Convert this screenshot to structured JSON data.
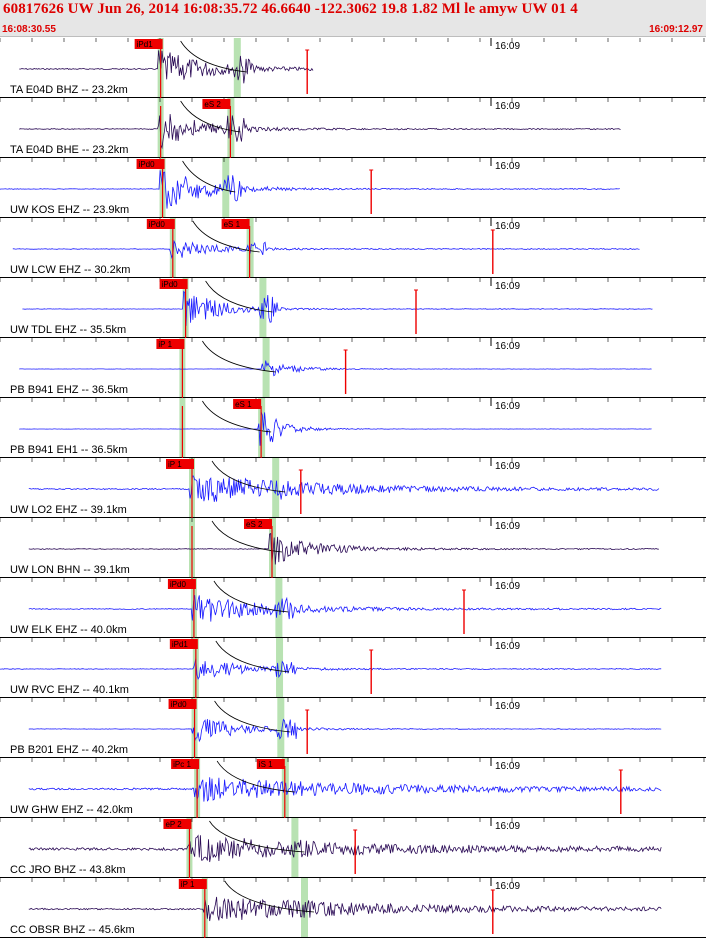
{
  "header": {
    "title": "60817626 UW Jun 26, 2014 16:08:35.72    46.6640 -122.3062 19.8 1.82 Ml le amyw UW 01    4",
    "time_start": "16:08:30.55",
    "time_end": "16:09:12.97"
  },
  "colors": {
    "trace_z": "#1a1aff",
    "trace_h": "#2a0a55",
    "pick_red": "#ee0000",
    "window_green": "#b8e2b2",
    "header_bg": "#e6e6e6"
  },
  "chart_data": {
    "type": "line",
    "minute_label": "16:09",
    "traces": [
      {
        "label": "TA E04D BHZ -- 23.2km",
        "color": "h",
        "p_label": "iPd1",
        "p": 25.1,
        "s": 37.0,
        "s_label": "",
        "onset": 24.5,
        "dur": 16,
        "amp": 0.8,
        "noise": 0.06,
        "end": 49.0,
        "gap": 3.0,
        "mark": 48.0
      },
      {
        "label": "TA E04D BHE -- 23.2km",
        "color": "h",
        "p_label": "",
        "p": 25.1,
        "s": 36.0,
        "s_label": "eS 2",
        "onset": 24.7,
        "dur": 15,
        "amp": 0.75,
        "noise": 0.04,
        "end": 97.0,
        "gap": 3.0,
        "mark": null
      },
      {
        "label": "UW KOS EHZ -- 23.9km",
        "color": "z",
        "p_label": "iPd0",
        "p": 25.4,
        "s": 35.2,
        "s_label": "",
        "onset": 25.0,
        "dur": 15,
        "amp": 0.85,
        "noise": 0.03,
        "end": 97.0,
        "gap": 0.0,
        "mark": 58.0
      },
      {
        "label": "UW LCW EHZ -- 30.2km",
        "color": "z",
        "p_label": "iPd0",
        "p": 27.0,
        "s": 39.0,
        "s_label": "eS 1",
        "onset": 26.6,
        "dur": 14,
        "amp": 0.45,
        "noise": 0.03,
        "end": 100.0,
        "gap": 2.0,
        "mark": 77.0
      },
      {
        "label": "UW TDL EHZ -- 35.5km",
        "color": "z",
        "p_label": "iPd0",
        "p": 29.0,
        "s": 41.0,
        "s_label": "",
        "onset": 28.6,
        "dur": 12,
        "amp": 0.8,
        "noise": 0.02,
        "end": 102.0,
        "gap": 3.5,
        "mark": 65.0
      },
      {
        "label": "PB B941 EHZ -- 36.5km",
        "color": "z",
        "p_label": "iP 1",
        "p": 28.5,
        "s": 41.5,
        "s_label": "",
        "onset": 40.8,
        "dur": 10,
        "amp": 0.4,
        "noise": 0.01,
        "end": 102.0,
        "gap": 3.0,
        "mark": 54.0
      },
      {
        "label": "PB B941 EH1 -- 36.5km",
        "color": "z",
        "p_label": "",
        "p": 28.5,
        "s": 40.8,
        "s_label": "eS 1",
        "onset": 40.4,
        "dur": 8,
        "amp": 0.75,
        "noise": 0.01,
        "end": 102.0,
        "gap": 3.0,
        "mark": null
      },
      {
        "label": "UW LO2 EHZ -- 39.1km",
        "color": "z",
        "p_label": "iP 1",
        "p": 30.0,
        "s": 43.0,
        "s_label": "",
        "onset": 29.6,
        "dur": 40,
        "amp": 0.6,
        "noise": 0.07,
        "end": 103.0,
        "gap": 4.5,
        "mark": 47.0
      },
      {
        "label": "UW LON BHN -- 39.1km",
        "color": "h",
        "p_label": "",
        "p": 30.0,
        "s": 42.5,
        "s_label": "eS 2",
        "onset": 42.1,
        "dur": 16,
        "amp": 0.6,
        "noise": 0.04,
        "end": 103.0,
        "gap": 4.5,
        "mark": null
      },
      {
        "label": "UW ELK EHZ -- 40.0km",
        "color": "z",
        "p_label": "iPd0",
        "p": 30.3,
        "s": 43.5,
        "s_label": "",
        "onset": 29.9,
        "dur": 25,
        "amp": 0.6,
        "noise": 0.05,
        "end": 103.5,
        "gap": 4.5,
        "mark": 72.5
      },
      {
        "label": "UW RVC EHZ -- 40.1km",
        "color": "z",
        "p_label": "iPd1",
        "p": 30.6,
        "s": 43.6,
        "s_label": "",
        "onset": 30.2,
        "dur": 18,
        "amp": 0.45,
        "noise": 0.03,
        "end": 103.5,
        "gap": 0.0,
        "mark": 58.0
      },
      {
        "label": "PB B201 EHZ -- 40.2km",
        "color": "z",
        "p_label": "iPd0",
        "p": 30.4,
        "s": 43.8,
        "s_label": "",
        "onset": 30.0,
        "dur": 16,
        "amp": 0.55,
        "noise": 0.02,
        "end": 103.5,
        "gap": 4.5,
        "mark": 48.0
      },
      {
        "label": "UW GHW EHZ -- 42.0km",
        "color": "z",
        "p_label": "iPc 1",
        "p": 30.8,
        "s": 44.5,
        "s_label": "iS 1",
        "onset": 30.4,
        "dur": 55,
        "amp": 0.45,
        "noise": 0.1,
        "end": 103.5,
        "gap": 4.5,
        "mark": 97.0
      },
      {
        "label": "CC JRO BHZ -- 43.8km",
        "color": "h",
        "p_label": "eP 2",
        "p": 29.6,
        "s": 46.0,
        "s_label": "",
        "onset": 29.2,
        "dur": 50,
        "amp": 0.5,
        "noise": 0.14,
        "end": 103.5,
        "gap": 4.5,
        "mark": 55.5
      },
      {
        "label": "CC OBSR BHZ -- 45.6km",
        "color": "h",
        "p_label": "iP 1",
        "p": 32.0,
        "s": 47.5,
        "s_label": "",
        "onset": 31.8,
        "dur": 55,
        "amp": 0.5,
        "noise": 0.08,
        "end": 103.5,
        "gap": 4.5,
        "mark": 77.0
      }
    ]
  }
}
